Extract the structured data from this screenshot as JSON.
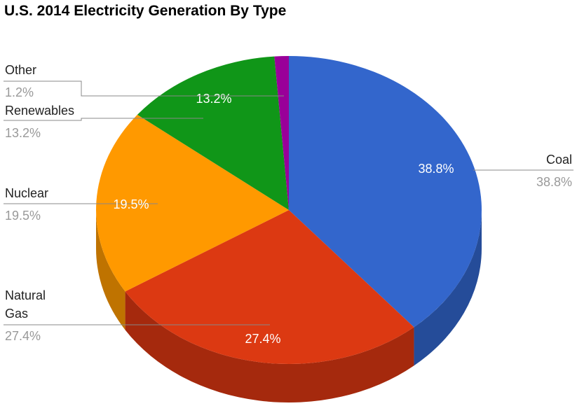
{
  "chart_data": {
    "type": "pie",
    "style": "3d",
    "title": "U.S. 2014 Electricity Generation By Type",
    "slices": [
      {
        "label": "Coal",
        "value": 38.8,
        "display": "38.8%",
        "color": "#3366cc",
        "side_color": "#254c99"
      },
      {
        "label": "Natural Gas",
        "value": 27.4,
        "display": "27.4%",
        "color": "#dc3912",
        "side_color": "#a5290d"
      },
      {
        "label": "Nuclear",
        "value": 19.5,
        "display": "19.5%",
        "color": "#ff9900",
        "side_color": "#bf7300"
      },
      {
        "label": "Renewables",
        "value": 13.2,
        "display": "13.2%",
        "color": "#109618",
        "side_color": "#0c7012"
      },
      {
        "label": "Other",
        "value": 1.2,
        "display": "1.2%",
        "color": "#990099",
        "side_color": "#730073"
      }
    ],
    "start_angle": "top",
    "direction": "clockwise",
    "legend": "labeled leader lines"
  }
}
